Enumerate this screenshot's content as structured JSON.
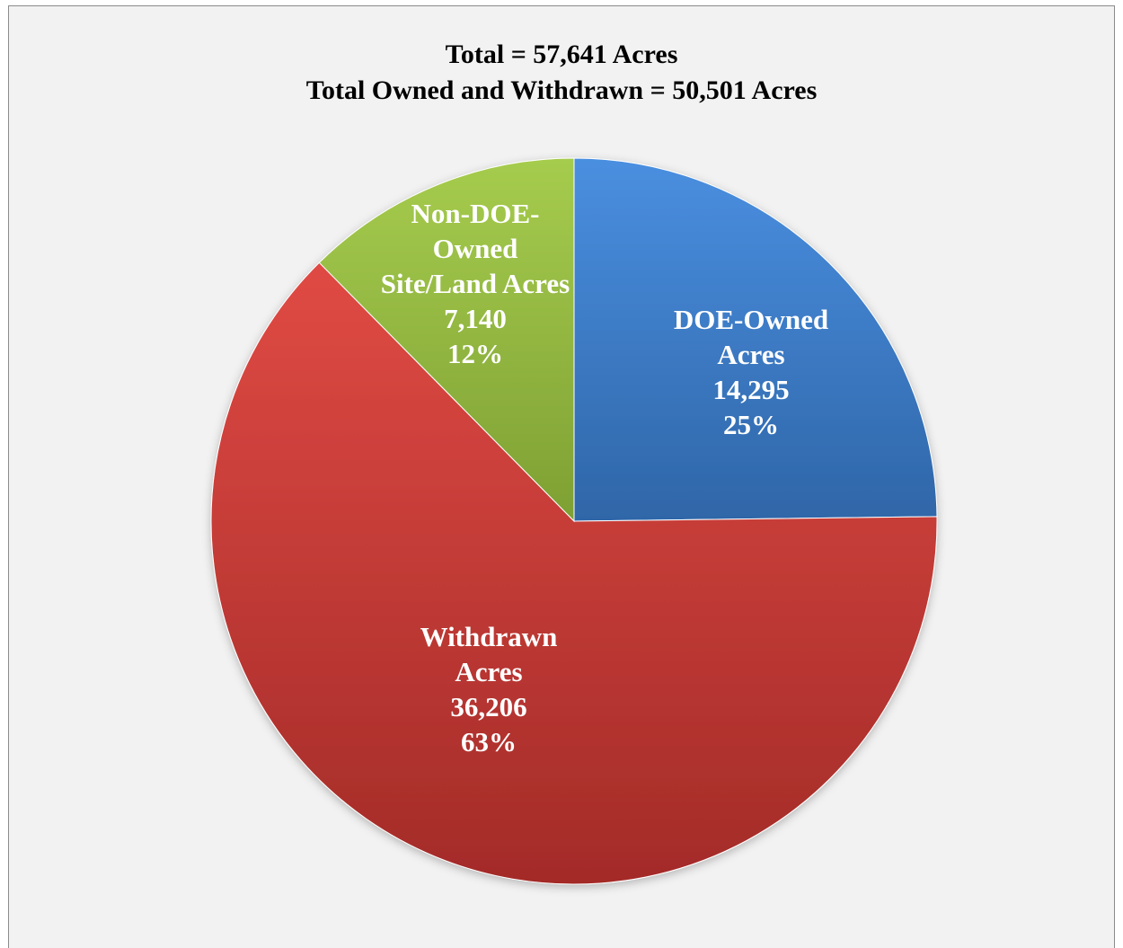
{
  "chart_data": {
    "type": "pie",
    "title_lines": [
      "Total = 57,641 Acres",
      "Total Owned and Withdrawn = 50,501 Acres"
    ],
    "slices": [
      {
        "key": "doe",
        "label_lines": [
          "DOE-Owned",
          "Acres"
        ],
        "value": 14295,
        "value_label": "14,295",
        "percent_label": "25%",
        "color": "#3d7cc9"
      },
      {
        "key": "withdrawn",
        "label_lines": [
          "Withdrawn",
          "Acres"
        ],
        "value": 36206,
        "value_label": "36,206",
        "percent_label": "63%",
        "color": "#c9403d"
      },
      {
        "key": "nondoe",
        "label_lines": [
          "Non-DOE-",
          "Owned",
          "Site/Land Acres"
        ],
        "value": 7140,
        "value_label": "7,140",
        "percent_label": "12%",
        "color": "#93b83f"
      }
    ],
    "start_angle": "12 o'clock",
    "direction": "clockwise",
    "legend": "none",
    "labels_inside": true
  }
}
